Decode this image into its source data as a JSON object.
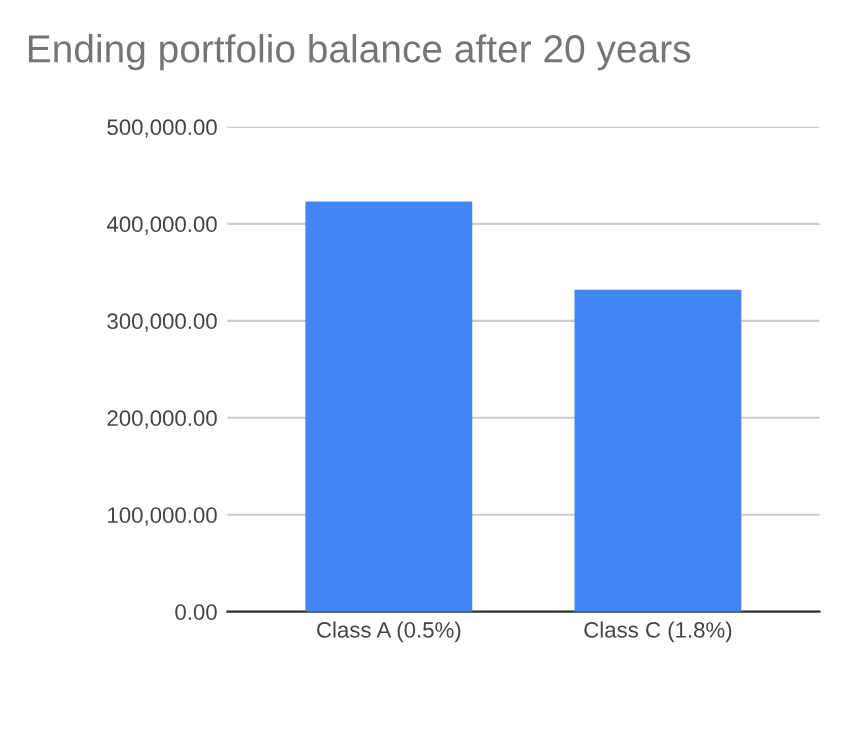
{
  "chart_data": {
    "type": "bar",
    "title": "Ending portfolio balance after 20 years",
    "categories": [
      "Class A (0.5%)",
      "Class C (1.8%)"
    ],
    "values": [
      423000,
      332000
    ],
    "color": "#4285f4",
    "ylim": [
      0,
      500000
    ],
    "yticks": [
      {
        "value": 0,
        "label": "0.00"
      },
      {
        "value": 100000,
        "label": "100,000.00"
      },
      {
        "value": 200000,
        "label": "200,000.00"
      },
      {
        "value": 300000,
        "label": "300,000.00"
      },
      {
        "value": 400000,
        "label": "400,000.00"
      },
      {
        "value": 500000,
        "label": "500,000.00"
      }
    ],
    "grid": "y"
  }
}
